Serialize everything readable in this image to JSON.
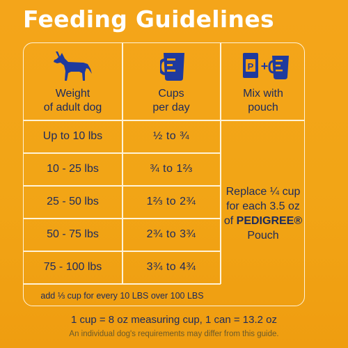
{
  "title": "Feeding Guidelines",
  "headers": {
    "weight": [
      "Weight",
      "of adult dog"
    ],
    "cups": [
      "Cups",
      "per day"
    ],
    "mix": [
      "Mix with",
      "pouch"
    ]
  },
  "icons": {
    "weight": "dog-icon",
    "cups": "measuring-cup-icon",
    "mix": "pouch-plus-cup-icon",
    "pouch_letter": "P",
    "plus": "+"
  },
  "rows": [
    {
      "weight": "Up to 10 lbs",
      "cups": "½  to  ¾"
    },
    {
      "weight": "10 - 25 lbs",
      "cups": "¾  to  1⅔"
    },
    {
      "weight": "25 - 50 lbs",
      "cups": "1⅔  to  2¾"
    },
    {
      "weight": "50 - 75 lbs",
      "cups": "2¾  to  3¾"
    },
    {
      "weight": "75 - 100 lbs",
      "cups": "3¾  to  4¾"
    }
  ],
  "extra_note": "add ⅓ cup for every 10 LBS over 100 LBS",
  "mix_text": {
    "line1": "Replace ¼ cup",
    "line2": "for each 3.5 oz",
    "line3_prefix": "of ",
    "brand": "PEDIGREE®",
    "line4": "Pouch"
  },
  "footer": {
    "line1": "1 cup = 8 oz measuring cup, 1 can = 13.2 oz",
    "line2": "An individual dog's requirements may differ from this guide."
  },
  "colors": {
    "background": "#f2a516",
    "text": "#1c2a5c",
    "lines": "#fff3d8",
    "icon_blue": "#1f3a9e",
    "pouch_orange": "#f29a12"
  }
}
